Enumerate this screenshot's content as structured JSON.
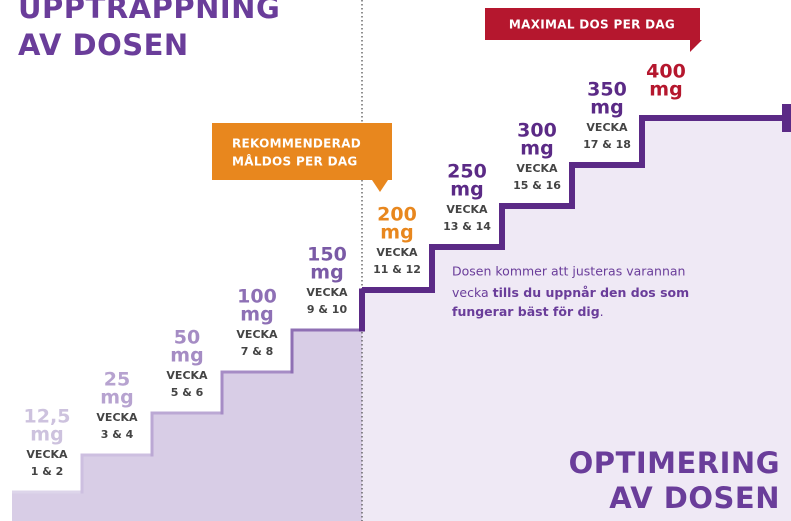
{
  "header": {
    "title_lines": [
      "UPPTRAPPNING",
      "AV DOSEN"
    ]
  },
  "steps": [
    {
      "dose": "12,5",
      "unit": "mg",
      "label": "VECKA",
      "weeks": "1 & 2"
    },
    {
      "dose": "25",
      "unit": "mg",
      "label": "VECKA",
      "weeks": "3 & 4"
    },
    {
      "dose": "50",
      "unit": "mg",
      "label": "VECKA",
      "weeks": "5 & 6"
    },
    {
      "dose": "100",
      "unit": "mg",
      "label": "VECKA",
      "weeks": "7 & 8"
    },
    {
      "dose": "150",
      "unit": "mg",
      "label": "VECKA",
      "weeks": "9 & 10"
    },
    {
      "dose": "200",
      "unit": "mg",
      "label": "VECKA",
      "weeks": "11 & 12"
    },
    {
      "dose": "250",
      "unit": "mg",
      "label": "VECKA",
      "weeks": "13 & 14"
    },
    {
      "dose": "300",
      "unit": "mg",
      "label": "VECKA",
      "weeks": "15 & 16"
    },
    {
      "dose": "350",
      "unit": "mg",
      "label": "VECKA",
      "weeks": "17 & 18"
    },
    {
      "dose": "400",
      "unit": "mg"
    }
  ],
  "callouts": {
    "recommended": {
      "lines": [
        "REKOMMENDERAD",
        "MÅLDOS PER DAG"
      ]
    },
    "maximum": {
      "text": "MAXIMAL DOS PER DAG"
    }
  },
  "info": {
    "lines": [
      "Dosen kommer att justeras varannan"
    ],
    "line2_normal": "vecka ",
    "line2_bold": "tills du uppnår den dos som",
    "line3_bold": "fungerar bäst för dig",
    "line3_normal": "."
  },
  "footer": {
    "title_lines": [
      "OPTIMERING",
      "AV DOSEN"
    ]
  }
}
